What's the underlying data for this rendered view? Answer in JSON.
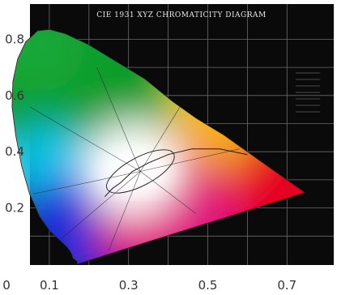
{
  "chart_data": {
    "type": "scatter",
    "title": "CIE 1931 XYZ CHROMATICITY DIAGRAM",
    "xlabel": "",
    "ylabel": "",
    "xlim": [
      0.0,
      0.8
    ],
    "ylim": [
      0.0,
      0.85
    ],
    "x_ticks": [
      0,
      0.1,
      0.3,
      0.5,
      0.7
    ],
    "y_ticks": [
      0.2,
      0.4,
      0.6,
      0.8
    ],
    "x_tick_labels": [
      "0",
      "0.1",
      "0.3",
      "0.5",
      "0.7"
    ],
    "y_tick_labels": [
      "0.2",
      "0.4",
      "0.6",
      "0.8"
    ],
    "grid": true,
    "spectral_locus": [
      [
        0.17,
        0.0
      ],
      [
        0.17,
        0.01
      ],
      [
        0.16,
        0.02
      ],
      [
        0.155,
        0.04
      ],
      [
        0.145,
        0.06
      ],
      [
        0.13,
        0.08
      ],
      [
        0.1,
        0.12
      ],
      [
        0.075,
        0.17
      ],
      [
        0.05,
        0.25
      ],
      [
        0.03,
        0.35
      ],
      [
        0.015,
        0.46
      ],
      [
        0.006,
        0.56
      ],
      [
        0.008,
        0.65
      ],
      [
        0.02,
        0.73
      ],
      [
        0.04,
        0.79
      ],
      [
        0.07,
        0.83
      ],
      [
        0.1,
        0.835
      ],
      [
        0.14,
        0.82
      ],
      [
        0.2,
        0.78
      ],
      [
        0.27,
        0.72
      ],
      [
        0.34,
        0.66
      ],
      [
        0.41,
        0.58
      ],
      [
        0.47,
        0.52
      ],
      [
        0.54,
        0.46
      ],
      [
        0.61,
        0.39
      ],
      [
        0.67,
        0.33
      ],
      [
        0.73,
        0.27
      ],
      [
        0.745,
        0.255
      ]
    ],
    "planckian_locus": [
      [
        0.6,
        0.39
      ],
      [
        0.53,
        0.41
      ],
      [
        0.46,
        0.41
      ],
      [
        0.4,
        0.39
      ],
      [
        0.35,
        0.36
      ],
      [
        0.31,
        0.33
      ],
      [
        0.28,
        0.29
      ],
      [
        0.26,
        0.27
      ],
      [
        0.24,
        0.24
      ]
    ],
    "colors": {
      "red": "#e60020",
      "yellow": "#f4ec1c",
      "green": "#0a9c2a",
      "cyan": "#10c4e8",
      "blue": "#1a2ad8",
      "magenta": "#e01880",
      "white": "#ffffff",
      "background": "#0a0a0a",
      "grid": "#6a6a6a"
    }
  }
}
